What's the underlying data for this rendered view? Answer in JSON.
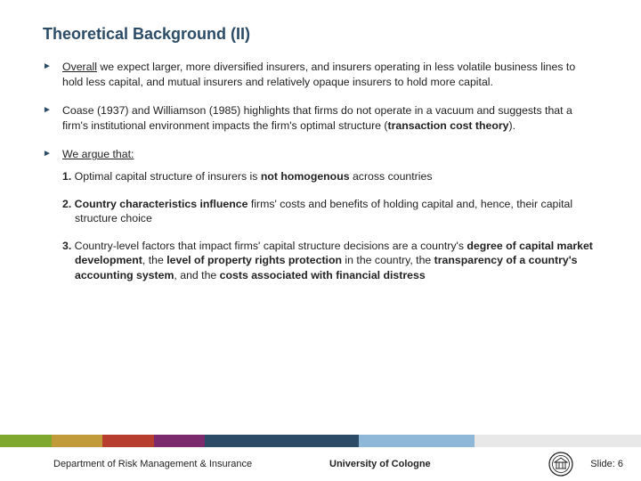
{
  "title": "Theoretical Background (II)",
  "bullets": {
    "b1": {
      "pre": "Overall",
      "rest": " we expect larger, more diversified insurers, and insurers operating in less volatile business lines to hold less capital, and mutual insurers and relatively opaque insurers to hold more capital."
    },
    "b2": {
      "pre": "Coase (1937) and Williamson (1985) highlights that firms do not operate in a vacuum and suggests that a firm's institutional environment impacts the firm's optimal structure (",
      "bold": "transaction cost theory",
      "post": ")."
    },
    "b3": {
      "text": "We argue that:"
    }
  },
  "sublist": {
    "s1": {
      "num": "1.",
      "pre": " Optimal capital structure of insurers is ",
      "b1": "not homogenous",
      "post": " across countries"
    },
    "s2": {
      "num": "2.",
      "b1": " Country characteristics influence",
      "post": " firms' costs and benefits of holding capital and, hence, their capital structure choice"
    },
    "s3": {
      "num": "3.",
      "pre": " Country-level factors that impact firms' capital structure decisions are a country's ",
      "b1": "degree of capital market development",
      "mid1": ", the ",
      "b2": "level of property rights protection",
      "mid2": " in the country, the ",
      "b3": "transparency of a country's accounting system",
      "mid3": ", and the ",
      "b4": "costs associated with financial distress"
    }
  },
  "colorbar": {
    "segments": [
      {
        "color": "#7fa82e",
        "width": 8
      },
      {
        "color": "#c19a3a",
        "width": 8
      },
      {
        "color": "#b73e2e",
        "width": 8
      },
      {
        "color": "#7a2a6d",
        "width": 8
      },
      {
        "color": "#2b4b66",
        "width": 24
      },
      {
        "color": "#8fb8d8",
        "width": 18
      },
      {
        "color": "#e8e8e8",
        "width": 26
      }
    ]
  },
  "footer": {
    "dept": "Department of Risk Management & Insurance",
    "uni": "University of Cologne",
    "slidenum": "Slide: 6",
    "seal_color": "#1a1a1a"
  }
}
